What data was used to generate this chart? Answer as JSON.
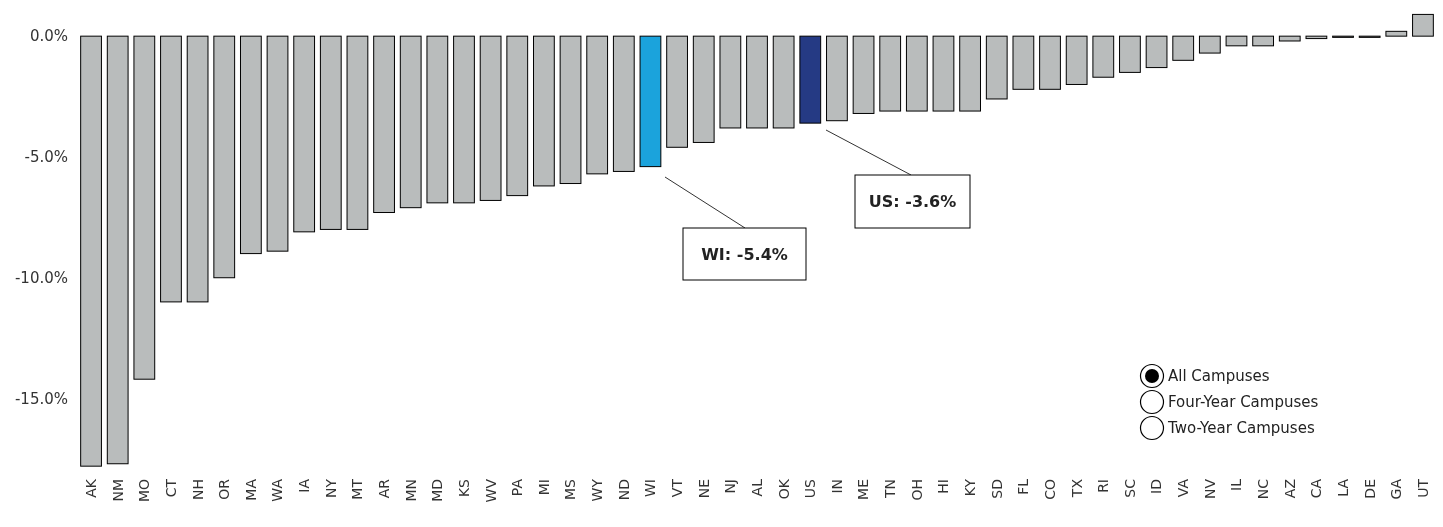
{
  "chart_data": {
    "type": "bar",
    "categories": [
      "AK",
      "NM",
      "MO",
      "CT",
      "NH",
      "OR",
      "MA",
      "WA",
      "IA",
      "NY",
      "MT",
      "AR",
      "MN",
      "MD",
      "KS",
      "WV",
      "PA",
      "MI",
      "MS",
      "WY",
      "ND",
      "WI",
      "VT",
      "NE",
      "NJ",
      "AL",
      "OK",
      "US",
      "IN",
      "ME",
      "TN",
      "OH",
      "HI",
      "KY",
      "SD",
      "FL",
      "CO",
      "TX",
      "RI",
      "SC",
      "ID",
      "VA",
      "NV",
      "IL",
      "NC",
      "AZ",
      "CA",
      "LA",
      "DE",
      "GA",
      "UT"
    ],
    "values": [
      -17.8,
      -17.7,
      -14.2,
      -11.0,
      -11.0,
      -10.0,
      -9.0,
      -8.9,
      -8.1,
      -8.0,
      -8.0,
      -7.3,
      -7.1,
      -6.9,
      -6.9,
      -6.8,
      -6.6,
      -6.2,
      -6.1,
      -5.7,
      -5.6,
      -5.4,
      -4.6,
      -4.4,
      -3.8,
      -3.8,
      -3.8,
      -3.6,
      -3.5,
      -3.2,
      -3.1,
      -3.1,
      -3.1,
      -3.1,
      -2.6,
      -2.2,
      -2.2,
      -2.0,
      -1.7,
      -1.5,
      -1.3,
      -1.0,
      -0.7,
      -0.4,
      -0.4,
      -0.2,
      -0.1,
      -0.05,
      -0.05,
      0.2,
      0.9
    ],
    "colors": [
      "#b9bcbc",
      "#b9bcbc",
      "#b9bcbc",
      "#b9bcbc",
      "#b9bcbc",
      "#b9bcbc",
      "#b9bcbc",
      "#b9bcbc",
      "#b9bcbc",
      "#b9bcbc",
      "#b9bcbc",
      "#b9bcbc",
      "#b9bcbc",
      "#b9bcbc",
      "#b9bcbc",
      "#b9bcbc",
      "#b9bcbc",
      "#b9bcbc",
      "#b9bcbc",
      "#b9bcbc",
      "#b9bcbc",
      "#1ba3dc",
      "#b9bcbc",
      "#b9bcbc",
      "#b9bcbc",
      "#b9bcbc",
      "#b9bcbc",
      "#253a84",
      "#b9bcbc",
      "#b9bcbc",
      "#b9bcbc",
      "#b9bcbc",
      "#b9bcbc",
      "#b9bcbc",
      "#b9bcbc",
      "#b9bcbc",
      "#b9bcbc",
      "#b9bcbc",
      "#b9bcbc",
      "#b9bcbc",
      "#b9bcbc",
      "#b9bcbc",
      "#b9bcbc",
      "#b9bcbc",
      "#b9bcbc",
      "#b9bcbc",
      "#b9bcbc",
      "#b9bcbc",
      "#b9bcbc",
      "#b9bcbc",
      "#b9bcbc"
    ],
    "ylim": [
      -18,
      1
    ],
    "yticks": [
      {
        "value": 0,
        "label": "0.0%"
      },
      {
        "value": -5,
        "label": "-5.0%"
      },
      {
        "value": -10,
        "label": "-10.0%"
      },
      {
        "value": -15,
        "label": "-15.0%"
      }
    ],
    "grid": false,
    "annotations": [
      "WI: -5.4%",
      "US: -3.6%",
      "All Campuses",
      "Four-Year Campuses",
      "Two-Year Campuses"
    ]
  }
}
